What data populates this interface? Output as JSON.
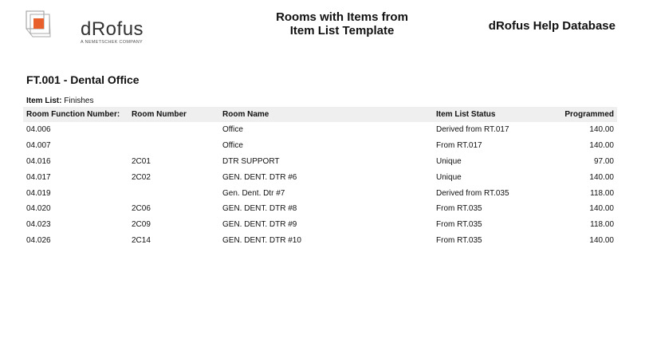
{
  "header": {
    "logo_text": "dRofus",
    "logo_subtext": "A NEMETSCHEK COMPANY",
    "title_line1": "Rooms with Items from",
    "title_line2": "Item List Template",
    "database": "dRofus Help Database"
  },
  "section_title": "FT.001 - Dental Office",
  "item_list": {
    "label": "Item List:",
    "value": "Finishes"
  },
  "table": {
    "columns": [
      "Room Function Number:",
      "Room Number",
      "Room Name",
      "Item List Status",
      "Programmed"
    ],
    "rows": [
      [
        "04.006",
        "",
        "Office",
        "Derived from RT.017",
        "140.00"
      ],
      [
        "04.007",
        "",
        "Office",
        "From RT.017",
        "140.00"
      ],
      [
        "04.016",
        "2C01",
        "DTR SUPPORT",
        "Unique",
        "97.00"
      ],
      [
        "04.017",
        "2C02",
        "GEN. DENT. DTR #6",
        "Unique",
        "140.00"
      ],
      [
        "04.019",
        "",
        "Gen. Dent. Dtr #7",
        "Derived from RT.035",
        "118.00"
      ],
      [
        "04.020",
        "2C06",
        "GEN. DENT. DTR #8",
        "From RT.035",
        "140.00"
      ],
      [
        "04.023",
        "2C09",
        "GEN. DENT. DTR #9",
        "From RT.035",
        "118.00"
      ],
      [
        "04.026",
        "2C14",
        "GEN. DENT. DTR #10",
        "From RT.035",
        "140.00"
      ]
    ]
  },
  "colors": {
    "logo_accent": "#e8602c",
    "header_bg": "#efefef"
  }
}
